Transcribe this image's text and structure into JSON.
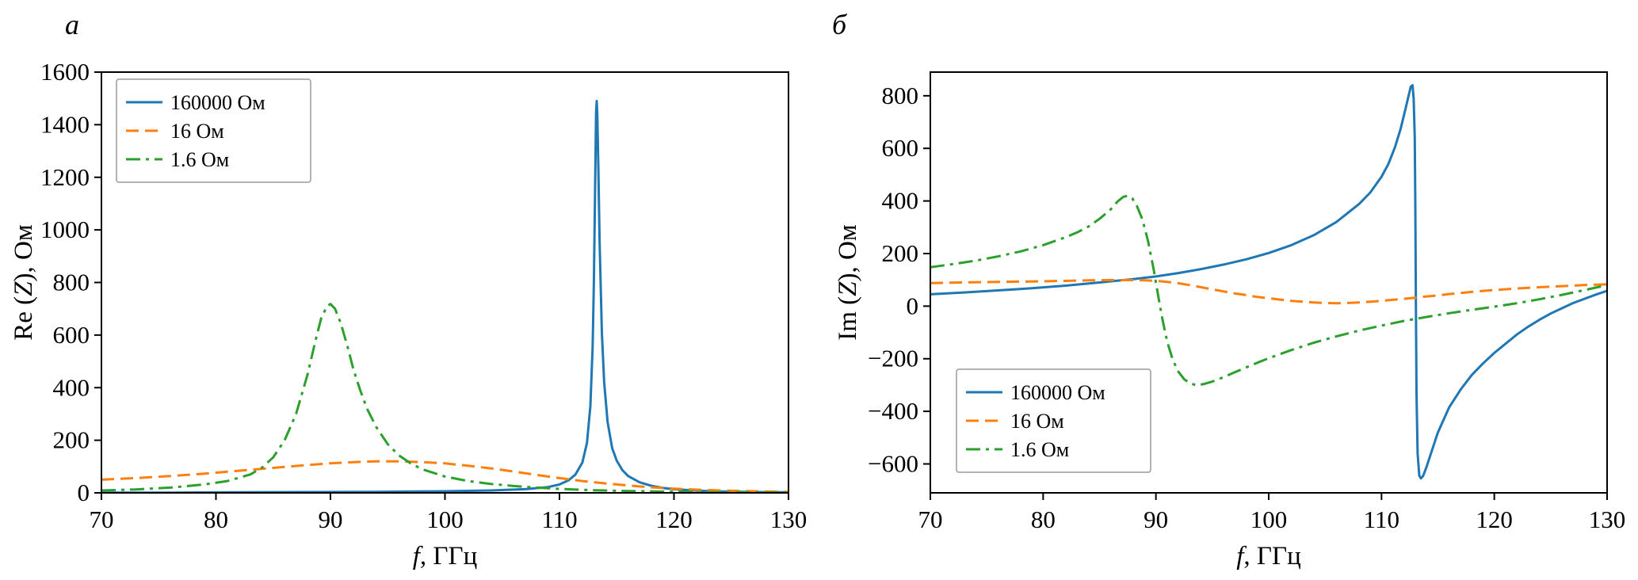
{
  "panels": [
    {
      "label": "а"
    },
    {
      "label": "б"
    }
  ],
  "chart_data": [
    {
      "id": "chart-a",
      "type": "line",
      "panel_label": "а",
      "xlabel_parts": [
        {
          "text": "f",
          "italic": true
        },
        {
          "text": ", ГГц",
          "italic": false
        }
      ],
      "ylabel_parts": [
        {
          "text": "Re (",
          "italic": false
        },
        {
          "text": "Z",
          "italic": true
        },
        {
          "text": "), Ом",
          "italic": false
        }
      ],
      "xlim": [
        70,
        130
      ],
      "ylim": [
        0,
        1600
      ],
      "xticks": [
        70,
        80,
        90,
        100,
        110,
        120,
        130
      ],
      "yticks": [
        0,
        200,
        400,
        600,
        800,
        1000,
        1200,
        1400,
        1600
      ],
      "grid": false,
      "legend": {
        "position": "top-left"
      },
      "series": [
        {
          "name": "160000 Ом",
          "color": "#1f77b4",
          "style": "solid",
          "points": [
            [
              70,
              1
            ],
            [
              76,
              1
            ],
            [
              82,
              2
            ],
            [
              88,
              3
            ],
            [
              94,
              4
            ],
            [
              100,
              6
            ],
            [
              104,
              9
            ],
            [
              107,
              14
            ],
            [
              109,
              22
            ],
            [
              110,
              32
            ],
            [
              110.8,
              48
            ],
            [
              111.4,
              70
            ],
            [
              112,
              115
            ],
            [
              112.4,
              190
            ],
            [
              112.7,
              330
            ],
            [
              112.9,
              560
            ],
            [
              113.0,
              800
            ],
            [
              113.1,
              1120
            ],
            [
              113.2,
              1450
            ],
            [
              113.25,
              1490
            ],
            [
              113.3,
              1440
            ],
            [
              113.4,
              1230
            ],
            [
              113.5,
              960
            ],
            [
              113.7,
              610
            ],
            [
              113.9,
              420
            ],
            [
              114.2,
              270
            ],
            [
              114.6,
              170
            ],
            [
              115,
              122
            ],
            [
              115.5,
              86
            ],
            [
              116,
              64
            ],
            [
              117,
              40
            ],
            [
              118,
              27
            ],
            [
              119,
              19
            ],
            [
              120,
              14
            ],
            [
              122,
              8
            ],
            [
              124,
              5
            ],
            [
              127,
              3
            ],
            [
              130,
              2
            ]
          ]
        },
        {
          "name": "16 Ом",
          "color": "#ff7f0e",
          "style": "dashed",
          "points": [
            [
              70,
              50
            ],
            [
              73,
              56
            ],
            [
              76,
              64
            ],
            [
              79,
              73
            ],
            [
              82,
              84
            ],
            [
              85,
              95
            ],
            [
              88,
              106
            ],
            [
              90,
              112
            ],
            [
              92,
              117
            ],
            [
              94,
              120
            ],
            [
              96,
              120
            ],
            [
              98,
              117
            ],
            [
              100,
              112
            ],
            [
              102,
              103
            ],
            [
              104,
              93
            ],
            [
              106,
              81
            ],
            [
              108,
              68
            ],
            [
              110,
              56
            ],
            [
              112,
              45
            ],
            [
              114,
              36
            ],
            [
              116,
              28
            ],
            [
              118,
              21
            ],
            [
              120,
              16
            ],
            [
              122,
              12
            ],
            [
              124,
              9
            ],
            [
              126,
              7
            ],
            [
              128,
              5
            ],
            [
              130,
              4
            ]
          ]
        },
        {
          "name": "1.6 Ом",
          "color": "#2ca02c",
          "style": "dashdot",
          "points": [
            [
              70,
              9
            ],
            [
              73,
              13
            ],
            [
              76,
              20
            ],
            [
              79,
              32
            ],
            [
              81,
              45
            ],
            [
              83,
              70
            ],
            [
              84,
              95
            ],
            [
              85,
              135
            ],
            [
              86,
              200
            ],
            [
              87,
              300
            ],
            [
              88,
              450
            ],
            [
              88.7,
              580
            ],
            [
              89.2,
              665
            ],
            [
              89.7,
              710
            ],
            [
              90,
              718
            ],
            [
              90.4,
              700
            ],
            [
              90.9,
              645
            ],
            [
              91.5,
              555
            ],
            [
              92,
              470
            ],
            [
              92.6,
              390
            ],
            [
              93.2,
              320
            ],
            [
              94,
              250
            ],
            [
              95,
              185
            ],
            [
              96,
              142
            ],
            [
              97,
              112
            ],
            [
              98,
              90
            ],
            [
              100,
              62
            ],
            [
              102,
              45
            ],
            [
              104,
              34
            ],
            [
              106,
              26
            ],
            [
              108,
              20
            ],
            [
              110,
              15
            ],
            [
              113,
              10
            ],
            [
              116,
              7
            ],
            [
              120,
              4
            ],
            [
              125,
              2
            ],
            [
              130,
              1
            ]
          ]
        }
      ]
    },
    {
      "id": "chart-b",
      "type": "line",
      "panel_label": "б",
      "xlabel_parts": [
        {
          "text": "f",
          "italic": true
        },
        {
          "text": ", ГГц",
          "italic": false
        }
      ],
      "ylabel_parts": [
        {
          "text": "Im (",
          "italic": false
        },
        {
          "text": "Z",
          "italic": true
        },
        {
          "text": "), Ом",
          "italic": false
        }
      ],
      "xlim": [
        70,
        130
      ],
      "ylim": [
        -710,
        890
      ],
      "xticks": [
        70,
        80,
        90,
        100,
        110,
        120,
        130
      ],
      "yticks": [
        -600,
        -400,
        -200,
        0,
        200,
        400,
        600,
        800
      ],
      "grid": false,
      "legend": {
        "position": "bottom-left"
      },
      "series": [
        {
          "name": "160000 Ом",
          "color": "#1f77b4",
          "style": "solid",
          "points": [
            [
              70,
              45
            ],
            [
              73,
              52
            ],
            [
              76,
              60
            ],
            [
              79,
              68
            ],
            [
              82,
              78
            ],
            [
              85,
              90
            ],
            [
              88,
              103
            ],
            [
              90,
              113
            ],
            [
              92,
              126
            ],
            [
              94,
              141
            ],
            [
              96,
              158
            ],
            [
              98,
              178
            ],
            [
              100,
              202
            ],
            [
              102,
              232
            ],
            [
              104,
              270
            ],
            [
              106,
              320
            ],
            [
              108,
              388
            ],
            [
              109,
              432
            ],
            [
              110,
              492
            ],
            [
              110.6,
              540
            ],
            [
              111.2,
              605
            ],
            [
              111.7,
              675
            ],
            [
              112.1,
              745
            ],
            [
              112.4,
              800
            ],
            [
              112.6,
              835
            ],
            [
              112.75,
              840
            ],
            [
              112.85,
              790
            ],
            [
              112.95,
              640
            ],
            [
              113.0,
              380
            ],
            [
              113.05,
              20
            ],
            [
              113.1,
              -330
            ],
            [
              113.2,
              -560
            ],
            [
              113.35,
              -645
            ],
            [
              113.5,
              -655
            ],
            [
              113.7,
              -645
            ],
            [
              114,
              -610
            ],
            [
              114.5,
              -545
            ],
            [
              115,
              -480
            ],
            [
              116,
              -385
            ],
            [
              117,
              -318
            ],
            [
              118,
              -262
            ],
            [
              119,
              -218
            ],
            [
              120,
              -178
            ],
            [
              121,
              -143
            ],
            [
              122,
              -108
            ],
            [
              123,
              -78
            ],
            [
              124,
              -52
            ],
            [
              125,
              -28
            ],
            [
              126,
              -8
            ],
            [
              127,
              12
            ],
            [
              128,
              28
            ],
            [
              129,
              44
            ],
            [
              130,
              58
            ]
          ]
        },
        {
          "name": "16 Ом",
          "color": "#ff7f0e",
          "style": "dashed",
          "points": [
            [
              70,
              88
            ],
            [
              73,
              90
            ],
            [
              76,
              92
            ],
            [
              79,
              94
            ],
            [
              82,
              96
            ],
            [
              84,
              98
            ],
            [
              86,
              99
            ],
            [
              88,
              99
            ],
            [
              89,
              98
            ],
            [
              90,
              96
            ],
            [
              91,
              92
            ],
            [
              92,
              87
            ],
            [
              93,
              80
            ],
            [
              94,
              72
            ],
            [
              95,
              64
            ],
            [
              96,
              56
            ],
            [
              97,
              48
            ],
            [
              98,
              42
            ],
            [
              99,
              35
            ],
            [
              100,
              30
            ],
            [
              101,
              25
            ],
            [
              102,
              20
            ],
            [
              103,
              17
            ],
            [
              104,
              14
            ],
            [
              105,
              12
            ],
            [
              106,
              11
            ],
            [
              107,
              12
            ],
            [
              108,
              14
            ],
            [
              109,
              17
            ],
            [
              110,
              20
            ],
            [
              111,
              24
            ],
            [
              112,
              28
            ],
            [
              113,
              32
            ],
            [
              114,
              37
            ],
            [
              115,
              41
            ],
            [
              116,
              46
            ],
            [
              117,
              50
            ],
            [
              118,
              54
            ],
            [
              119,
              58
            ],
            [
              120,
              61
            ],
            [
              122,
              67
            ],
            [
              124,
              72
            ],
            [
              126,
              76
            ],
            [
              128,
              80
            ],
            [
              130,
              83
            ]
          ]
        },
        {
          "name": "1.6 Ом",
          "color": "#2ca02c",
          "style": "dashdot",
          "points": [
            [
              70,
              148
            ],
            [
              72,
              160
            ],
            [
              74,
              173
            ],
            [
              76,
              189
            ],
            [
              78,
              208
            ],
            [
              80,
              232
            ],
            [
              82,
              262
            ],
            [
              83,
              280
            ],
            [
              84,
              302
            ],
            [
              85,
              332
            ],
            [
              86,
              368
            ],
            [
              86.6,
              398
            ],
            [
              87.1,
              415
            ],
            [
              87.5,
              420
            ],
            [
              87.9,
              410
            ],
            [
              88.3,
              382
            ],
            [
              88.8,
              330
            ],
            [
              89.3,
              248
            ],
            [
              89.8,
              140
            ],
            [
              90.2,
              40
            ],
            [
              90.6,
              -55
            ],
            [
              91,
              -135
            ],
            [
              91.5,
              -205
            ],
            [
              92,
              -250
            ],
            [
              92.5,
              -278
            ],
            [
              93,
              -293
            ],
            [
              93.5,
              -300
            ],
            [
              94.2,
              -297
            ],
            [
              95,
              -287
            ],
            [
              96,
              -270
            ],
            [
              97,
              -251
            ],
            [
              98,
              -233
            ],
            [
              99,
              -215
            ],
            [
              100,
              -198
            ],
            [
              102,
              -167
            ],
            [
              104,
              -139
            ],
            [
              106,
              -115
            ],
            [
              108,
              -93
            ],
            [
              110,
              -74
            ],
            [
              112,
              -56
            ],
            [
              114,
              -41
            ],
            [
              116,
              -27
            ],
            [
              118,
              -14
            ],
            [
              120,
              -2
            ],
            [
              122,
              11
            ],
            [
              124,
              26
            ],
            [
              126,
              43
            ],
            [
              128,
              61
            ],
            [
              130,
              80
            ]
          ]
        }
      ]
    }
  ]
}
